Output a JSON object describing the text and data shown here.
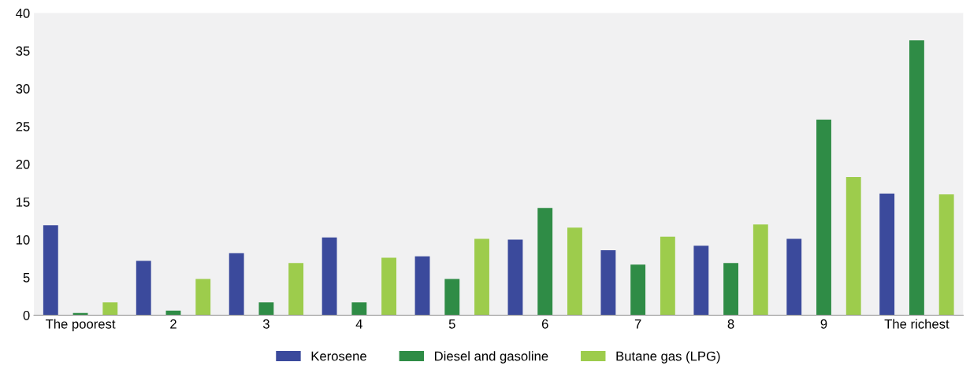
{
  "chart_data": {
    "type": "bar",
    "categories": [
      "The poorest",
      "2",
      "3",
      "4",
      "5",
      "6",
      "7",
      "8",
      "9",
      "The richest"
    ],
    "series": [
      {
        "name": "Kerosene",
        "color": "#3b4a9c",
        "values": [
          11.9,
          7.2,
          8.2,
          10.3,
          7.8,
          10.0,
          8.6,
          9.2,
          10.1,
          16.1
        ]
      },
      {
        "name": "Diesel and gasoline",
        "color": "#2f8c46",
        "values": [
          0.3,
          0.6,
          1.7,
          1.7,
          4.8,
          14.2,
          6.7,
          6.9,
          25.9,
          36.4
        ]
      },
      {
        "name": "Butane gas (LPG)",
        "color": "#9dcc4c",
        "values": [
          1.7,
          4.8,
          6.9,
          7.6,
          10.1,
          11.6,
          10.4,
          12.0,
          18.3,
          16.0
        ]
      }
    ],
    "ylim": [
      0,
      40
    ],
    "yticks": [
      0,
      5,
      10,
      15,
      20,
      25,
      30,
      35,
      40
    ],
    "grid": false,
    "legend": "bottom"
  }
}
